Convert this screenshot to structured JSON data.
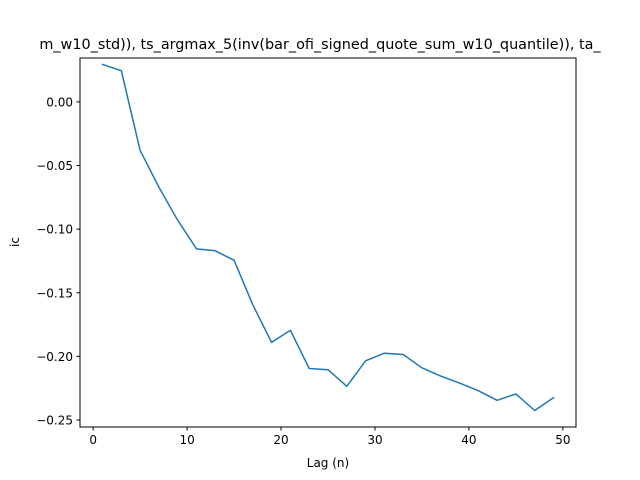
{
  "chart_data": {
    "type": "line",
    "title": "m_w10_std)), ts_argmax_5(inv(bar_ofi_signed_quote_sum_w10_quantile)), ta_",
    "xlabel": "Lag (n)",
    "ylabel": "ic",
    "xlim": [
      -1.4,
      51.4
    ],
    "ylim": [
      -0.2555,
      0.0345
    ],
    "xticks": [
      0,
      10,
      20,
      30,
      40,
      50
    ],
    "yticks": [
      0.0,
      -0.05,
      -0.1,
      -0.15,
      -0.2,
      -0.25
    ],
    "xtick_labels": [
      "0",
      "10",
      "20",
      "30",
      "40",
      "50"
    ],
    "ytick_labels": [
      "0.00",
      "−0.05",
      "−0.10",
      "−0.15",
      "−0.20",
      "−0.25"
    ],
    "grid": false,
    "series": [
      {
        "color": "#1f77b4",
        "x": [
          1,
          3,
          5,
          7,
          9,
          11,
          13,
          15,
          17,
          19,
          21,
          23,
          25,
          27,
          29,
          31,
          33,
          35,
          37,
          39,
          41,
          43,
          45,
          47,
          49
        ],
        "y": [
          0.0295,
          0.0245,
          -0.038,
          -0.067,
          -0.093,
          -0.1155,
          -0.117,
          -0.1245,
          -0.1595,
          -0.189,
          -0.1795,
          -0.2095,
          -0.2105,
          -0.2235,
          -0.2035,
          -0.1975,
          -0.1985,
          -0.209,
          -0.2155,
          -0.221,
          -0.227,
          -0.2345,
          -0.2295,
          -0.2425,
          -0.2325
        ]
      }
    ]
  }
}
